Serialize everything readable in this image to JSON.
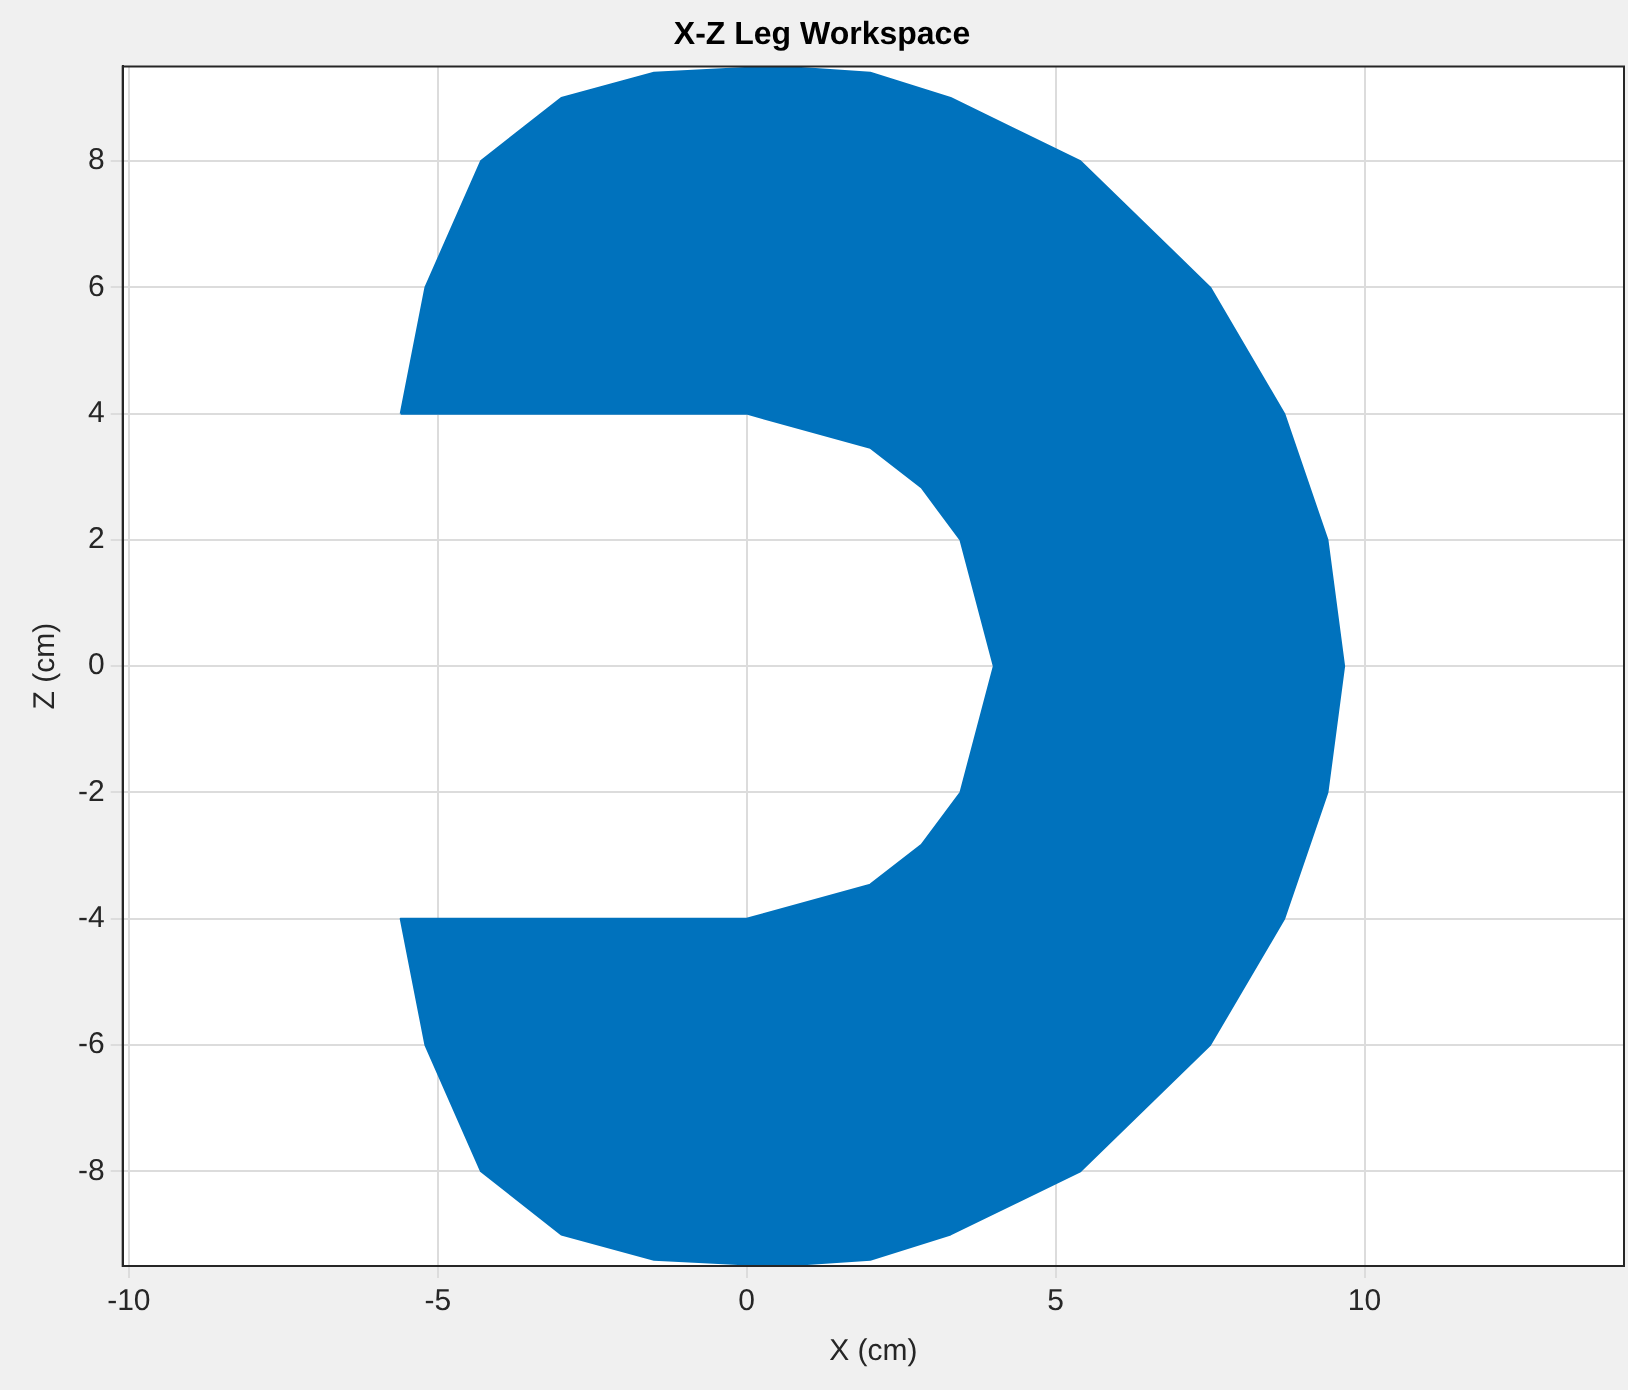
{
  "chart_data": {
    "type": "area",
    "title": "X-Z Leg Workspace",
    "xlabel": "X (cm)",
    "ylabel": "Z (cm)",
    "xlim": [
      -10.1,
      14.2
    ],
    "ylim": [
      -9.5,
      9.5
    ],
    "xticks": [
      -10,
      -5,
      0,
      5,
      10
    ],
    "yticks": [
      -8,
      -6,
      -4,
      -2,
      0,
      2,
      4,
      6,
      8
    ],
    "grid": true,
    "legend": false,
    "marker": "none",
    "series": [
      {
        "color": "#0072bd",
        "x": [
          -5.6,
          -5.2,
          -4.3,
          -3.0,
          -1.5,
          0.5,
          2.0,
          3.3,
          5.4,
          7.5,
          8.7,
          9.4,
          9.67,
          9.4,
          8.7,
          7.5,
          5.4,
          3.3,
          2.0,
          0.5,
          -1.5,
          -3.0,
          -4.3,
          -5.2,
          -5.6,
          0,
          2.0,
          2.83,
          3.46,
          4.0,
          3.46,
          2.83,
          2.0,
          0,
          -5.6
        ],
        "values": [
          4,
          6,
          8,
          9,
          9.4,
          9.5,
          9.4,
          9,
          8,
          6,
          4,
          2,
          0,
          -2,
          -4,
          -6,
          -8,
          -9,
          -9.4,
          -9.5,
          -9.4,
          -9,
          -8,
          -6,
          -4,
          -4,
          -3.46,
          -2.83,
          -2,
          0,
          2,
          2.83,
          3.46,
          4,
          4
        ]
      }
    ]
  }
}
